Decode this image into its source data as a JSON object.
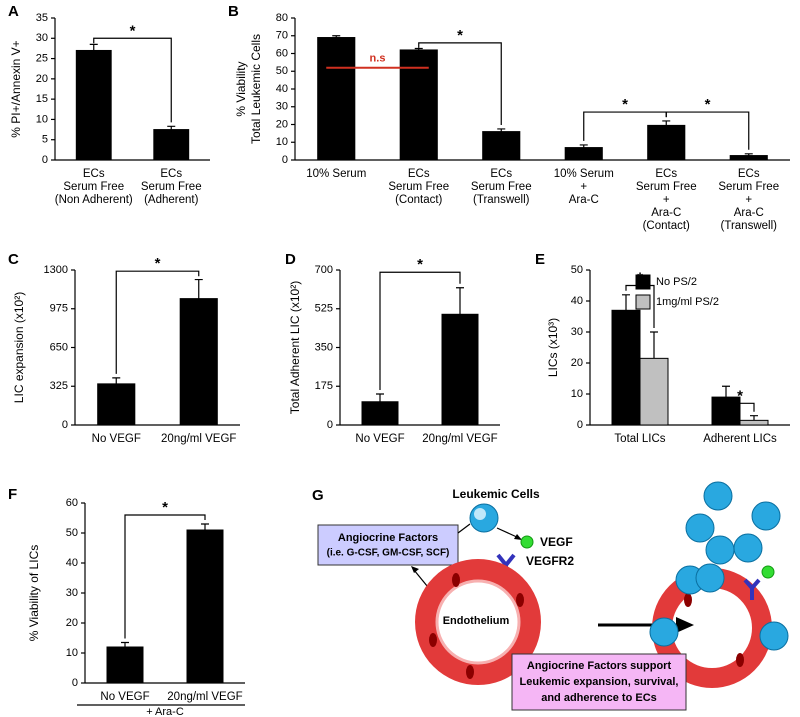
{
  "chart_data": [
    {
      "type": "bar",
      "panel": "A",
      "y_label": [
        "% PI+/Annexin V+"
      ],
      "categories": [
        [
          "ECs",
          "Serum Free",
          "(Non Adherent)"
        ],
        [
          "ECs",
          "Serum Free",
          "(Adherent)"
        ]
      ],
      "series": [
        {
          "color": "#000000",
          "values": [
            27,
            7.5
          ],
          "errors": [
            1.5,
            0.8
          ]
        }
      ],
      "ylim": [
        0,
        35
      ],
      "yticks": [
        0,
        5,
        10,
        15,
        20,
        25,
        30,
        35
      ],
      "annotations": [
        "*"
      ]
    },
    {
      "type": "bar",
      "panel": "B",
      "y_label": [
        "% Viability",
        "Total Leukemic Cells"
      ],
      "categories": [
        [
          "10% Serum"
        ],
        [
          "ECs",
          "Serum Free",
          "(Contact)"
        ],
        [
          "ECs",
          "Serum Free",
          "(Transwell)"
        ],
        [
          "10% Serum",
          "+",
          "Ara-C"
        ],
        [
          "ECs",
          "Serum Free",
          "+",
          "Ara-C",
          "(Contact)"
        ],
        [
          "ECs",
          "Serum Free",
          "+",
          "Ara-C",
          "(Transwell)"
        ]
      ],
      "series": [
        {
          "color": "#000000",
          "values": [
            69,
            62,
            16,
            7,
            19.5,
            2.5
          ],
          "errors": [
            1,
            0.8,
            1.5,
            1.5,
            2.5,
            1
          ]
        }
      ],
      "ylim": [
        0,
        80
      ],
      "yticks": [
        0,
        10,
        20,
        30,
        40,
        50,
        60,
        70,
        80
      ],
      "annotations": [
        "n.s",
        "*",
        "*",
        "*"
      ]
    },
    {
      "type": "bar",
      "panel": "C",
      "y_label": [
        "LIC  expansion (x10²)"
      ],
      "categories": [
        [
          "No VEGF"
        ],
        [
          "20ng/ml VEGF"
        ]
      ],
      "series": [
        {
          "color": "#000000",
          "values": [
            345,
            1060
          ],
          "errors": [
            50,
            160
          ]
        }
      ],
      "ylim": [
        0,
        1300
      ],
      "yticks": [
        0,
        325,
        650,
        975,
        1300
      ],
      "annotations": [
        "*"
      ]
    },
    {
      "type": "bar",
      "panel": "D",
      "y_label": [
        "Total Adherent LIC (x10²)"
      ],
      "categories": [
        [
          "No VEGF"
        ],
        [
          "20ng/ml VEGF"
        ]
      ],
      "series": [
        {
          "color": "#000000",
          "values": [
            105,
            500
          ],
          "errors": [
            35,
            120
          ]
        }
      ],
      "ylim": [
        0,
        700
      ],
      "yticks": [
        0,
        175,
        350,
        525,
        700
      ],
      "annotations": [
        "*"
      ]
    },
    {
      "type": "bar",
      "panel": "E",
      "y_label": [
        "LICs (x10³)"
      ],
      "categories": [
        [
          "Total LICs"
        ],
        [
          "Adherent LICs"
        ]
      ],
      "series": [
        {
          "name": "No PS/2",
          "color": "#000000",
          "values": [
            37,
            9
          ],
          "errors": [
            5,
            3.5
          ]
        },
        {
          "name": "1mg/ml PS/2",
          "color": "#c0c0c0",
          "values": [
            21.5,
            1.5
          ],
          "errors": [
            8.5,
            1.5
          ]
        }
      ],
      "ylim": [
        0,
        50
      ],
      "yticks": [
        0,
        10,
        20,
        30,
        40,
        50
      ],
      "annotations": [
        "*",
        "*"
      ]
    },
    {
      "type": "bar",
      "panel": "F",
      "y_label": [
        "% Viability of LICs"
      ],
      "categories": [
        [
          "No VEGF"
        ],
        [
          "20ng/ml VEGF"
        ]
      ],
      "series": [
        {
          "color": "#000000",
          "values": [
            12,
            51
          ],
          "errors": [
            1.5,
            2
          ]
        }
      ],
      "ylim": [
        0,
        60
      ],
      "yticks": [
        0,
        10,
        20,
        30,
        40,
        50,
        60
      ],
      "x_label": "+ Ara-C",
      "annotations": [
        "*"
      ]
    }
  ],
  "diagram": {
    "panel": "G",
    "cells": "Leukemic Cells",
    "ligand": "VEGF",
    "receptor": "VEGFR2",
    "factors_box": [
      "Angiocrine Factors",
      "(i.e. G-CSF, GM-CSF, SCF)"
    ],
    "endothelium": "Endothelium",
    "outcome_box": [
      "Angiocrine Factors support",
      "Leukemic expansion, survival,",
      "and adherence to ECs"
    ]
  }
}
